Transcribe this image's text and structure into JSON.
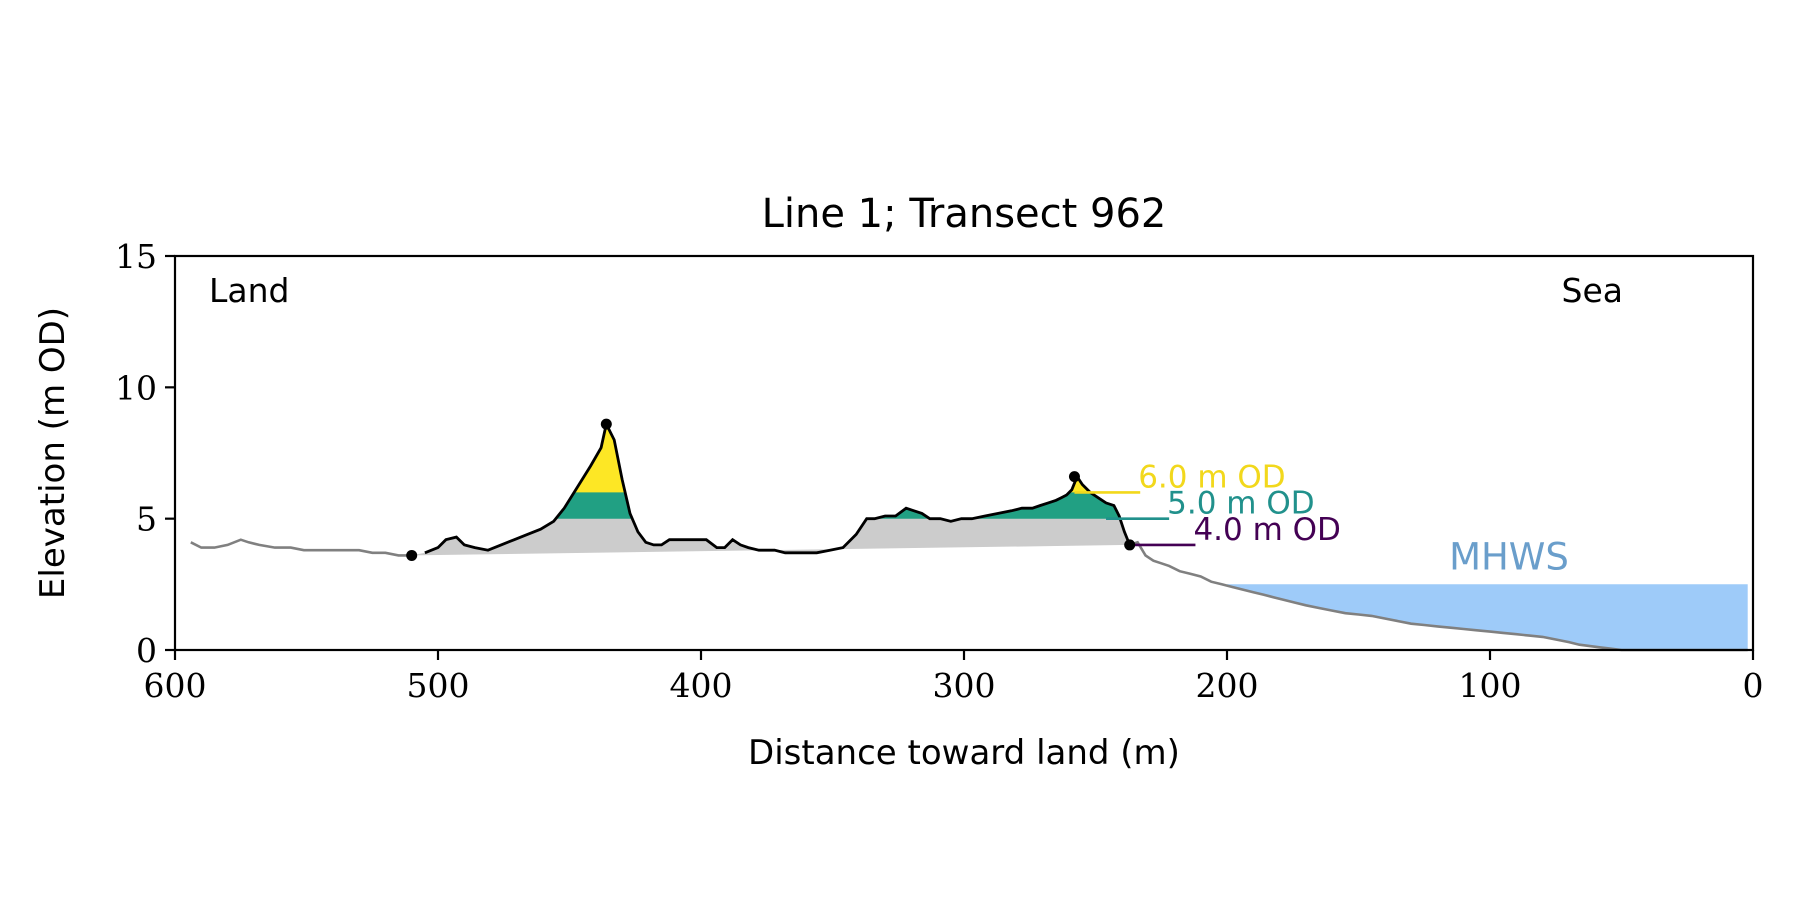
{
  "chart_data": {
    "type": "line",
    "title": "Line 1; Transect 962",
    "xlabel": "Distance toward land (m)",
    "ylabel": "Elevation (m OD)",
    "xlim": [
      600,
      0
    ],
    "ylim": [
      0,
      15
    ],
    "x_ticks": [
      600,
      500,
      400,
      300,
      200,
      100,
      0
    ],
    "y_ticks": [
      0,
      5,
      10,
      15
    ],
    "grid": false,
    "corner_labels": {
      "left": "Land",
      "right": "Sea"
    },
    "profile": {
      "x": [
        594,
        590,
        585,
        580,
        575,
        572,
        568,
        562,
        556,
        551,
        545,
        540,
        535,
        530,
        525,
        520,
        515,
        511,
        505,
        500,
        497,
        493,
        490,
        486,
        481,
        476,
        471,
        466,
        461,
        456,
        452,
        447,
        442,
        438,
        436,
        433,
        430,
        427,
        424,
        421,
        418,
        415,
        412,
        409,
        406,
        402,
        398,
        394,
        391,
        388,
        385,
        382,
        378,
        375,
        372,
        368,
        362,
        356,
        351,
        346,
        341,
        337,
        334,
        330,
        326,
        322,
        319,
        316,
        313,
        309,
        305,
        301,
        297,
        292,
        287,
        282,
        278,
        274,
        271,
        268,
        265,
        263,
        261,
        259,
        257,
        255,
        252,
        249,
        246,
        243,
        241,
        239,
        237,
        234,
        231,
        228,
        225,
        222,
        218,
        214,
        210,
        206,
        202,
        198,
        194,
        190,
        186,
        182,
        178,
        174,
        170,
        165,
        160,
        155,
        150,
        145,
        140,
        135,
        130,
        125,
        120,
        115,
        110,
        105,
        100,
        95,
        90,
        85,
        80,
        75,
        70,
        66,
        62,
        58,
        54,
        50,
        46,
        42,
        38,
        34,
        30,
        25,
        20,
        15,
        10,
        5,
        2
      ],
      "y": [
        4.1,
        3.9,
        3.9,
        4.0,
        4.2,
        4.1,
        4.0,
        3.9,
        3.9,
        3.8,
        3.8,
        3.8,
        3.8,
        3.8,
        3.7,
        3.7,
        3.6,
        3.6,
        3.7,
        3.9,
        4.2,
        4.3,
        4.0,
        3.9,
        3.8,
        4.0,
        4.2,
        4.4,
        4.6,
        4.9,
        5.4,
        6.2,
        7.0,
        7.7,
        8.6,
        8.0,
        6.5,
        5.2,
        4.5,
        4.1,
        4.0,
        4.0,
        4.2,
        4.2,
        4.2,
        4.2,
        4.2,
        3.9,
        3.9,
        4.2,
        4.0,
        3.9,
        3.8,
        3.8,
        3.8,
        3.7,
        3.7,
        3.7,
        3.8,
        3.9,
        4.4,
        5.0,
        5.0,
        5.1,
        5.1,
        5.4,
        5.3,
        5.2,
        5.0,
        5.0,
        4.9,
        5.0,
        5.0,
        5.1,
        5.2,
        5.3,
        5.4,
        5.4,
        5.5,
        5.6,
        5.7,
        5.8,
        5.9,
        6.1,
        6.6,
        6.3,
        6.0,
        5.8,
        5.6,
        5.5,
        5.1,
        4.5,
        4.0,
        4.1,
        3.6,
        3.4,
        3.3,
        3.2,
        3.0,
        2.9,
        2.8,
        2.6,
        2.5,
        2.4,
        2.3,
        2.2,
        2.1,
        2.0,
        1.9,
        1.8,
        1.7,
        1.6,
        1.5,
        1.4,
        1.35,
        1.3,
        1.2,
        1.1,
        1.0,
        0.95,
        0.9,
        0.85,
        0.8,
        0.75,
        0.7,
        0.65,
        0.6,
        0.55,
        0.5,
        0.4,
        0.3,
        0.2,
        0.15,
        0.1,
        0.05,
        0.0,
        0.0,
        0.0,
        0.0,
        0.0,
        0.0,
        0.0,
        0.0,
        0.0,
        0.0,
        0.0,
        0.0
      ],
      "dune_segment_x_range": [
        510,
        237
      ]
    },
    "baseline": {
      "x": [
        510,
        237
      ],
      "y": [
        3.6,
        4.0
      ]
    },
    "marked_points": [
      {
        "x": 510,
        "y": 3.6
      },
      {
        "x": 436,
        "y": 8.6
      },
      {
        "x": 258,
        "y": 6.6
      },
      {
        "x": 237,
        "y": 4.0
      }
    ],
    "levels": [
      {
        "label": "6.0 m OD",
        "value": 6.0,
        "color": "#f2d81c"
      },
      {
        "label": "5.0 m OD",
        "value": 5.0,
        "color": "#21918c"
      },
      {
        "label": "4.0 m OD",
        "value": 4.0,
        "color": "#440154"
      }
    ],
    "mhws": {
      "label": "MHWS",
      "value": 2.5,
      "x_range": [
        200,
        1
      ],
      "fill_color": "#9ecbf9",
      "label_color": "#6a9ecb"
    },
    "colors": {
      "fill_5m": "#21a083",
      "fill_6m": "#fde725",
      "dune_fill": "#cccccc",
      "profile_outside": "#808080",
      "profile_dune": "#000000"
    }
  }
}
